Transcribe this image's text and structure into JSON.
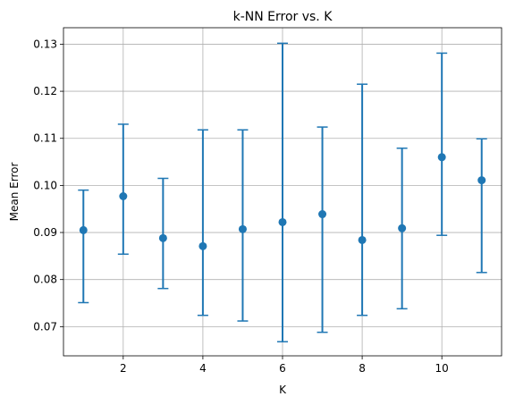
{
  "chart_data": {
    "type": "scatter",
    "title": "k-NN Error vs. K",
    "xlabel": "K",
    "ylabel": "Mean Error",
    "xlim": [
      0.5,
      11.5
    ],
    "ylim": [
      0.0638,
      0.1335
    ],
    "xticks": [
      2,
      4,
      6,
      8,
      10
    ],
    "yticks": [
      0.07,
      0.08,
      0.09,
      0.1,
      0.11,
      0.12,
      0.13
    ],
    "xtick_labels": [
      "2",
      "4",
      "6",
      "8",
      "10"
    ],
    "ytick_labels": [
      "0.07",
      "0.08",
      "0.09",
      "0.10",
      "0.11",
      "0.12",
      "0.13"
    ],
    "grid": true,
    "error_bars": true,
    "series": [
      {
        "color": "#1f77b4",
        "x": [
          1,
          2,
          3,
          4,
          5,
          6,
          7,
          8,
          9,
          10,
          11
        ],
        "y": [
          0.0905,
          0.0977,
          0.0888,
          0.0871,
          0.0907,
          0.0922,
          0.0939,
          0.0884,
          0.0909,
          0.106,
          0.1011
        ],
        "err_low": [
          0.0751,
          0.0854,
          0.0781,
          0.0724,
          0.0712,
          0.0668,
          0.0688,
          0.0724,
          0.0738,
          0.0894,
          0.0815
        ],
        "err_high": [
          0.099,
          0.113,
          0.1015,
          0.1118,
          0.1118,
          0.1302,
          0.1124,
          0.1215,
          0.1079,
          0.1281,
          0.1099
        ]
      }
    ]
  }
}
